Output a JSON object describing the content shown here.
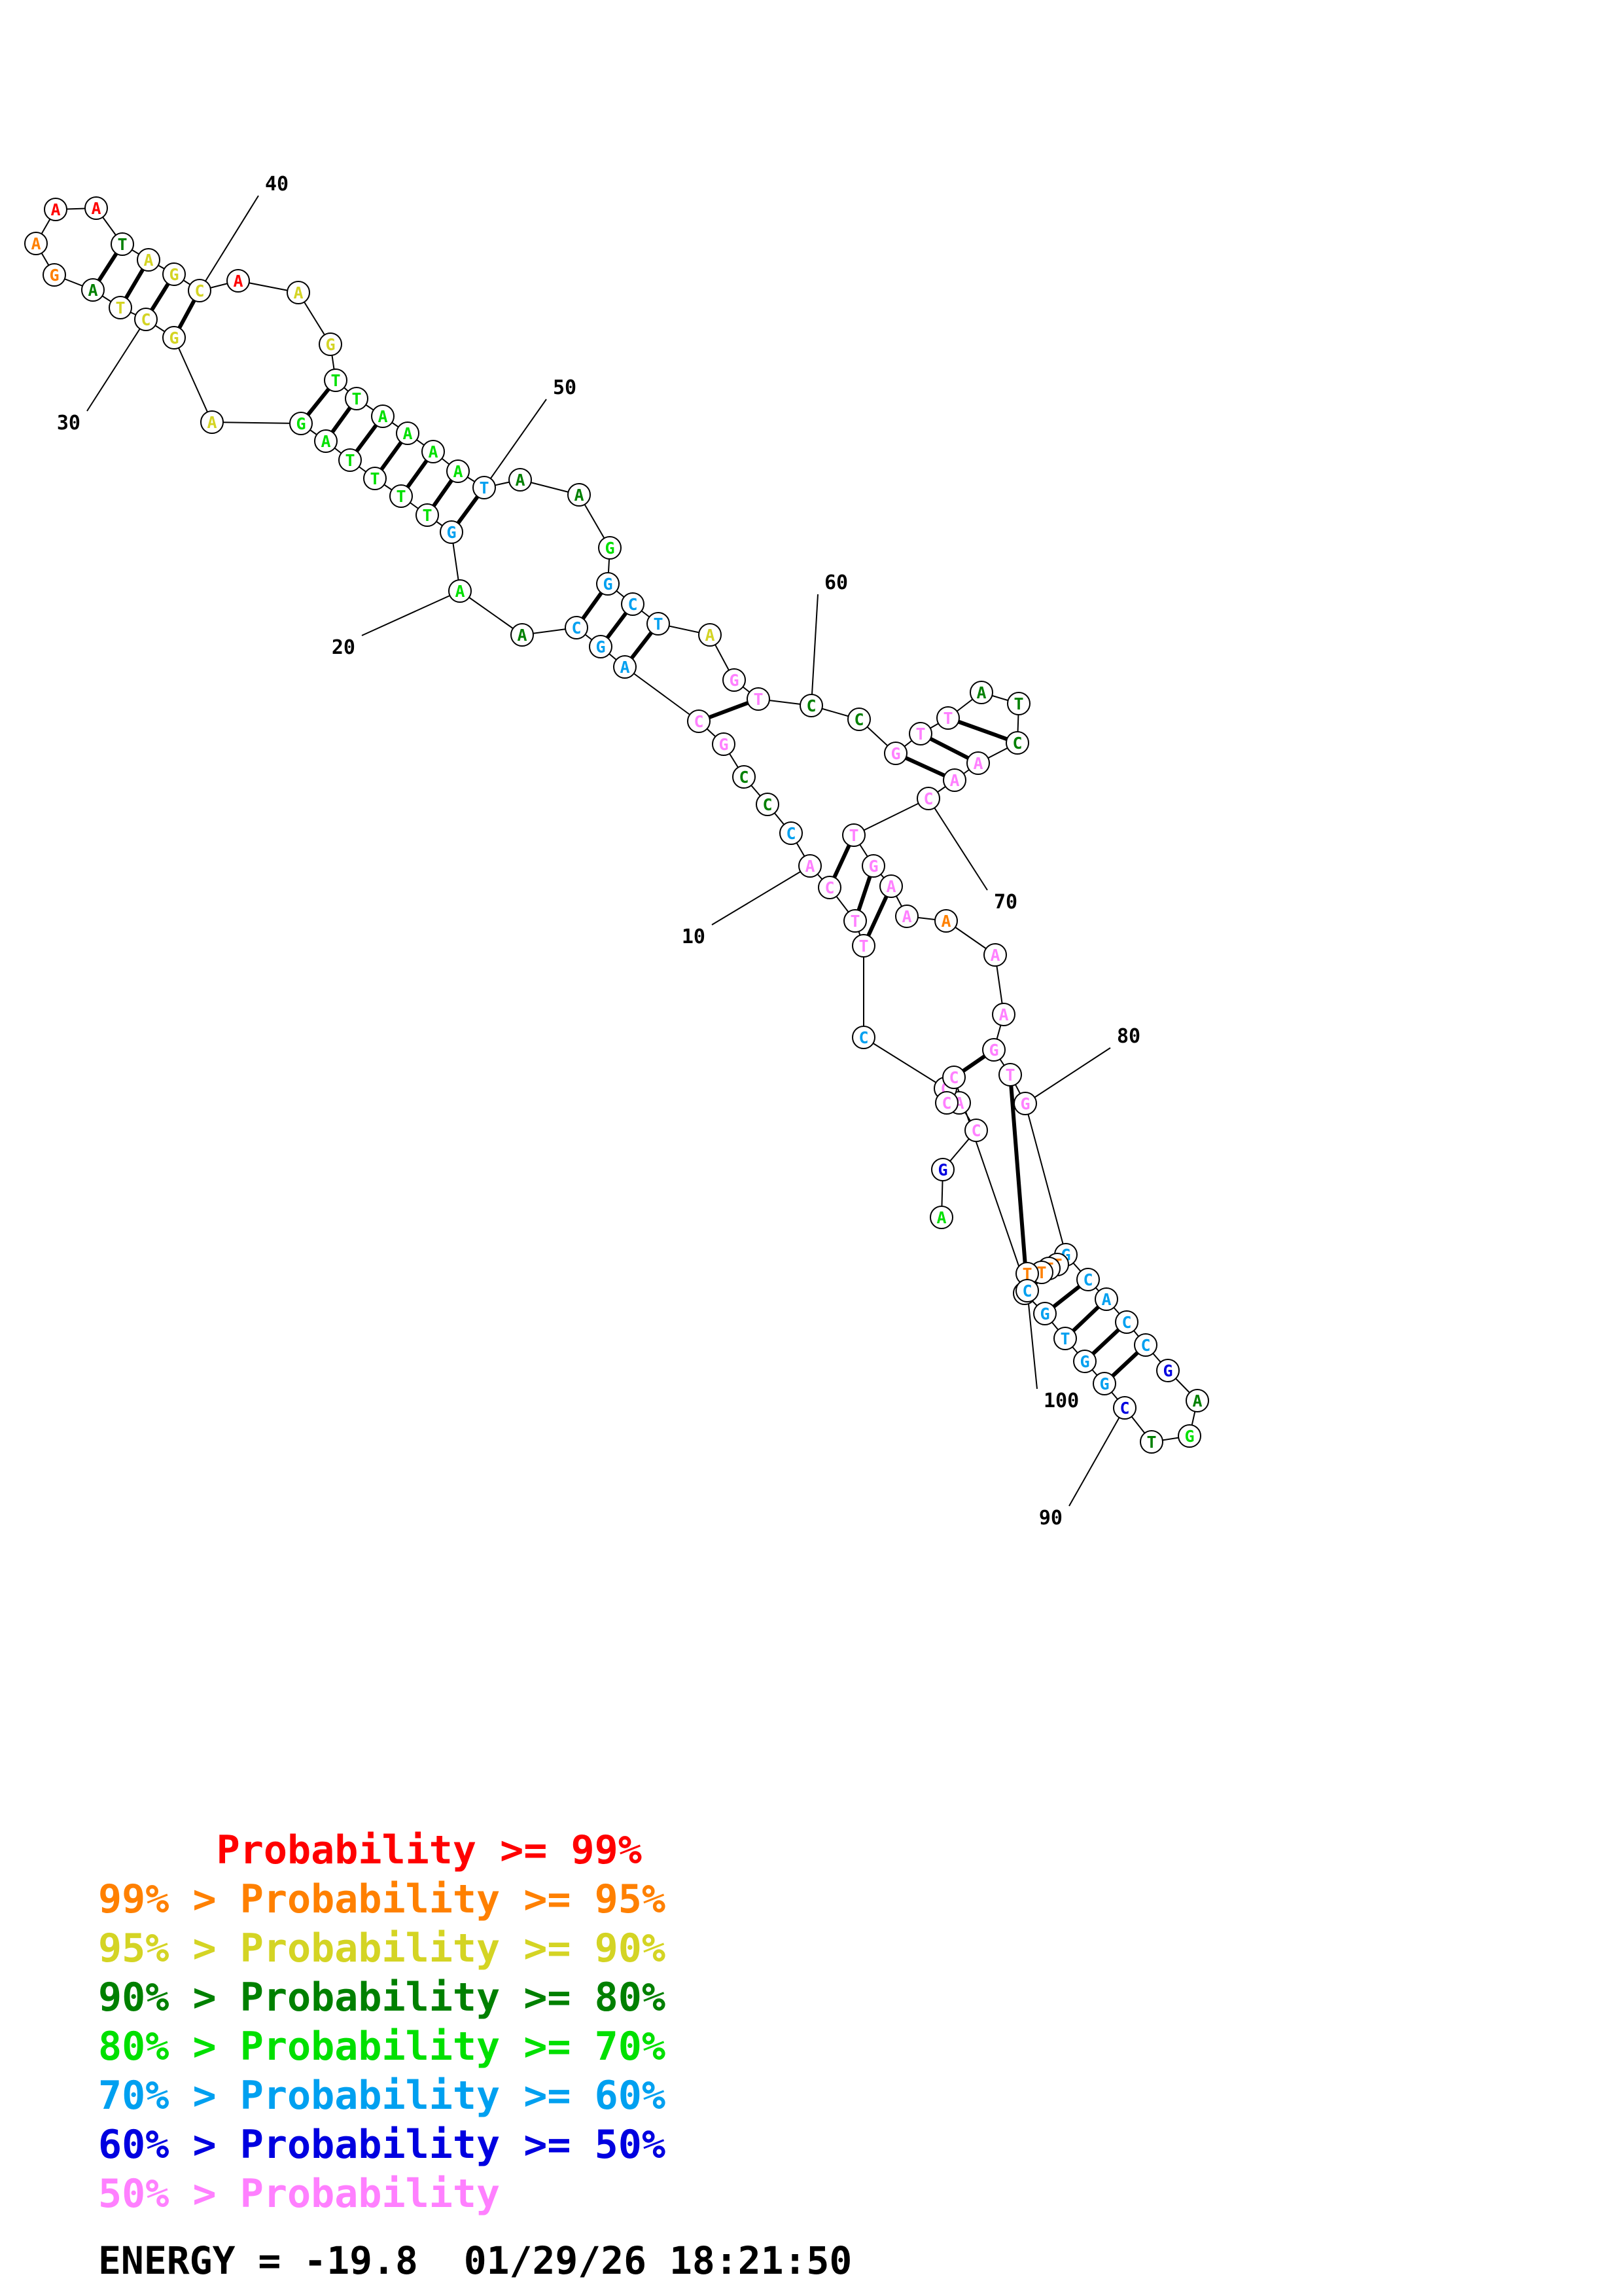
{
  "colors": {
    "c99": "#ff0000",
    "c95": "#ff8000",
    "c90": "#d4d424",
    "c80": "#008000",
    "c70": "#00e000",
    "c60": "#00a0f0",
    "c50": "#0000e0",
    "clow": "#ff80ff"
  },
  "nucleotides": [
    {
      "n": 1,
      "base": "A",
      "c": "c70"
    },
    {
      "n": 2,
      "base": "G",
      "c": "c50"
    },
    {
      "n": 3,
      "base": "C",
      "c": "clow"
    },
    {
      "n": 4,
      "base": "A",
      "c": "clow"
    },
    {
      "n": 5,
      "base": "C",
      "c": "clow"
    },
    {
      "n": 6,
      "base": "C",
      "c": "c60"
    },
    {
      "n": 7,
      "base": "T",
      "c": "clow"
    },
    {
      "n": 8,
      "base": "T",
      "c": "clow"
    },
    {
      "n": 9,
      "base": "C",
      "c": "clow"
    },
    {
      "n": 10,
      "base": "A",
      "c": "clow"
    },
    {
      "n": 11,
      "base": "C",
      "c": "c60"
    },
    {
      "n": 12,
      "base": "C",
      "c": "c80"
    },
    {
      "n": 13,
      "base": "C",
      "c": "c80"
    },
    {
      "n": 14,
      "base": "G",
      "c": "clow"
    },
    {
      "n": 15,
      "base": "C",
      "c": "clow"
    },
    {
      "n": 16,
      "base": "A",
      "c": "c60"
    },
    {
      "n": 17,
      "base": "G",
      "c": "c60"
    },
    {
      "n": 18,
      "base": "C",
      "c": "c60"
    },
    {
      "n": 19,
      "base": "A",
      "c": "c80"
    },
    {
      "n": 20,
      "base": "A",
      "c": "c70"
    },
    {
      "n": 21,
      "base": "G",
      "c": "c60"
    },
    {
      "n": 22,
      "base": "T",
      "c": "c70"
    },
    {
      "n": 23,
      "base": "T",
      "c": "c70"
    },
    {
      "n": 24,
      "base": "T",
      "c": "c70"
    },
    {
      "n": 25,
      "base": "T",
      "c": "c70"
    },
    {
      "n": 26,
      "base": "A",
      "c": "c70"
    },
    {
      "n": 27,
      "base": "G",
      "c": "c70"
    },
    {
      "n": 28,
      "base": "A",
      "c": "c90"
    },
    {
      "n": 29,
      "base": "G",
      "c": "c90"
    },
    {
      "n": 30,
      "base": "C",
      "c": "c90"
    },
    {
      "n": 31,
      "base": "T",
      "c": "c90"
    },
    {
      "n": 32,
      "base": "A",
      "c": "c80"
    },
    {
      "n": 33,
      "base": "G",
      "c": "c95"
    },
    {
      "n": 34,
      "base": "A",
      "c": "c95"
    },
    {
      "n": 35,
      "base": "A",
      "c": "c99"
    },
    {
      "n": 36,
      "base": "A",
      "c": "c99"
    },
    {
      "n": 37,
      "base": "T",
      "c": "c80"
    },
    {
      "n": 38,
      "base": "A",
      "c": "c90"
    },
    {
      "n": 39,
      "base": "G",
      "c": "c90"
    },
    {
      "n": 40,
      "base": "C",
      "c": "c90"
    },
    {
      "n": 41,
      "base": "A",
      "c": "c99"
    },
    {
      "n": 42,
      "base": "A",
      "c": "c90"
    },
    {
      "n": 43,
      "base": "G",
      "c": "c90"
    },
    {
      "n": 44,
      "base": "T",
      "c": "c70"
    },
    {
      "n": 45,
      "base": "T",
      "c": "c70"
    },
    {
      "n": 46,
      "base": "A",
      "c": "c70"
    },
    {
      "n": 47,
      "base": "A",
      "c": "c70"
    },
    {
      "n": 48,
      "base": "A",
      "c": "c70"
    },
    {
      "n": 49,
      "base": "A",
      "c": "c70"
    },
    {
      "n": 50,
      "base": "T",
      "c": "c60"
    },
    {
      "n": 51,
      "base": "A",
      "c": "c80"
    },
    {
      "n": 52,
      "base": "A",
      "c": "c80"
    },
    {
      "n": 53,
      "base": "G",
      "c": "c70"
    },
    {
      "n": 54,
      "base": "G",
      "c": "c60"
    },
    {
      "n": 55,
      "base": "C",
      "c": "c60"
    },
    {
      "n": 56,
      "base": "T",
      "c": "c60"
    },
    {
      "n": 57,
      "base": "A",
      "c": "c90"
    },
    {
      "n": 58,
      "base": "G",
      "c": "clow"
    },
    {
      "n": 59,
      "base": "T",
      "c": "clow"
    },
    {
      "n": 60,
      "base": "C",
      "c": "c80"
    },
    {
      "n": 61,
      "base": "C",
      "c": "c80"
    },
    {
      "n": 62,
      "base": "G",
      "c": "clow"
    },
    {
      "n": 63,
      "base": "T",
      "c": "clow"
    },
    {
      "n": 64,
      "base": "T",
      "c": "clow"
    },
    {
      "n": 65,
      "base": "A",
      "c": "c80"
    },
    {
      "n": 66,
      "base": "T",
      "c": "c80"
    },
    {
      "n": 67,
      "base": "C",
      "c": "c80"
    },
    {
      "n": 68,
      "base": "A",
      "c": "clow"
    },
    {
      "n": 69,
      "base": "A",
      "c": "clow"
    },
    {
      "n": 70,
      "base": "C",
      "c": "clow"
    },
    {
      "n": 71,
      "base": "T",
      "c": "clow"
    },
    {
      "n": 72,
      "base": "G",
      "c": "clow"
    },
    {
      "n": 73,
      "base": "A",
      "c": "clow"
    },
    {
      "n": 74,
      "base": "A",
      "c": "clow"
    },
    {
      "n": 75,
      "base": "A",
      "c": "c95"
    },
    {
      "n": 76,
      "base": "A",
      "c": "clow"
    },
    {
      "n": 77,
      "base": "A",
      "c": "clow"
    },
    {
      "n": 78,
      "base": "G",
      "c": "clow"
    },
    {
      "n": 79,
      "base": "T",
      "c": "clow"
    },
    {
      "n": 80,
      "base": "G",
      "c": "clow"
    },
    {
      "n": 81,
      "base": "G",
      "c": "c60"
    },
    {
      "n": 82,
      "base": "C",
      "c": "c60"
    },
    {
      "n": 83,
      "base": "A",
      "c": "c60"
    },
    {
      "n": 84,
      "base": "C",
      "c": "c60"
    },
    {
      "n": 85,
      "base": "C",
      "c": "c60"
    },
    {
      "n": 86,
      "base": "G",
      "c": "c50"
    },
    {
      "n": 87,
      "base": "A",
      "c": "c80"
    },
    {
      "n": 88,
      "base": "G",
      "c": "c70"
    },
    {
      "n": 89,
      "base": "T",
      "c": "c80"
    },
    {
      "n": 90,
      "base": "C",
      "c": "c50"
    },
    {
      "n": 91,
      "base": "G",
      "c": "c60"
    },
    {
      "n": 92,
      "base": "G",
      "c": "c60"
    },
    {
      "n": 93,
      "base": "T",
      "c": "c60"
    },
    {
      "n": 94,
      "base": "G",
      "c": "c60"
    },
    {
      "n": 95,
      "base": "C",
      "c": "c60"
    },
    {
      "n": 96,
      "base": "T",
      "c": "c95"
    },
    {
      "n": 97,
      "base": "T",
      "c": "c95"
    },
    {
      "n": 98,
      "base": "T",
      "c": "c95"
    },
    {
      "n": 99,
      "base": "T",
      "c": "c95"
    },
    {
      "n": 100,
      "base": "C",
      "c": "c60"
    },
    {
      "n": 101,
      "base": "C",
      "c": "clow"
    },
    {
      "n": 102,
      "base": "C",
      "c": "clow"
    }
  ],
  "pairs": [
    [
      7,
      73
    ],
    [
      8,
      72
    ],
    [
      9,
      71
    ],
    [
      15,
      59
    ],
    [
      16,
      56
    ],
    [
      17,
      55
    ],
    [
      18,
      54
    ],
    [
      21,
      50
    ],
    [
      22,
      49
    ],
    [
      23,
      48
    ],
    [
      24,
      47
    ],
    [
      25,
      46
    ],
    [
      26,
      45
    ],
    [
      27,
      44
    ],
    [
      29,
      40
    ],
    [
      30,
      39
    ],
    [
      31,
      38
    ],
    [
      32,
      37
    ],
    [
      62,
      69
    ],
    [
      63,
      68
    ],
    [
      64,
      67
    ],
    [
      78,
      101
    ],
    [
      79,
      100
    ],
    [
      81,
      95
    ],
    [
      82,
      94
    ],
    [
      83,
      93
    ],
    [
      84,
      92
    ],
    [
      85,
      91
    ]
  ],
  "position_labels": [
    {
      "text": "10",
      "n": 10
    },
    {
      "text": "20",
      "n": 20
    },
    {
      "text": "30",
      "n": 30
    },
    {
      "text": "40",
      "n": 40
    },
    {
      "text": "50",
      "n": 50
    },
    {
      "text": "60",
      "n": 60
    },
    {
      "text": "70",
      "n": 70
    },
    {
      "text": "80",
      "n": 80
    },
    {
      "text": "90",
      "n": 90
    },
    {
      "text": "100",
      "n": 100
    }
  ],
  "legend": [
    {
      "text": "     Probability >= 99%",
      "c": "c99"
    },
    {
      "text": "99% > Probability >= 95%",
      "c": "c95"
    },
    {
      "text": "95% > Probability >= 90%",
      "c": "c90"
    },
    {
      "text": "90% > Probability >= 80%",
      "c": "c80"
    },
    {
      "text": "80% > Probability >= 70%",
      "c": "c70"
    },
    {
      "text": "70% > Probability >= 60%",
      "c": "c60"
    },
    {
      "text": "60% > Probability >= 50%",
      "c": "c50"
    },
    {
      "text": "50% > Probability",
      "c": "clow"
    }
  ],
  "energy_label": "ENERGY = -19.8  01/29/26 18:21:50"
}
